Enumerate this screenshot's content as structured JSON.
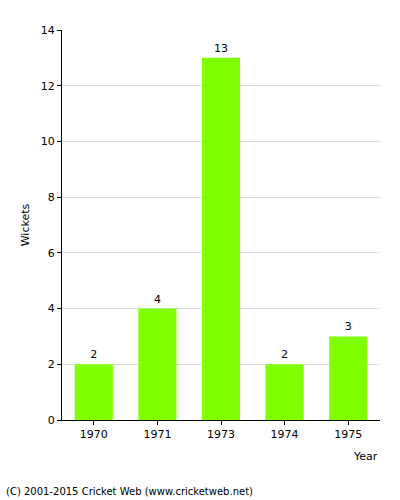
{
  "chart_data": {
    "type": "bar",
    "categories": [
      "1970",
      "1971",
      "1973",
      "1974",
      "1975"
    ],
    "values": [
      2,
      4,
      13,
      2,
      3
    ],
    "color": "#7fff00",
    "x_label": "Year",
    "y_label": "Wickets",
    "ylim": [
      0,
      14
    ],
    "yticks": [
      0,
      2,
      4,
      6,
      8,
      10,
      12,
      14
    ],
    "grid": true,
    "data_labels": true,
    "annotations": [
      "(C) 2001-2015 Cricket Web (www.cricketweb.net)"
    ]
  }
}
